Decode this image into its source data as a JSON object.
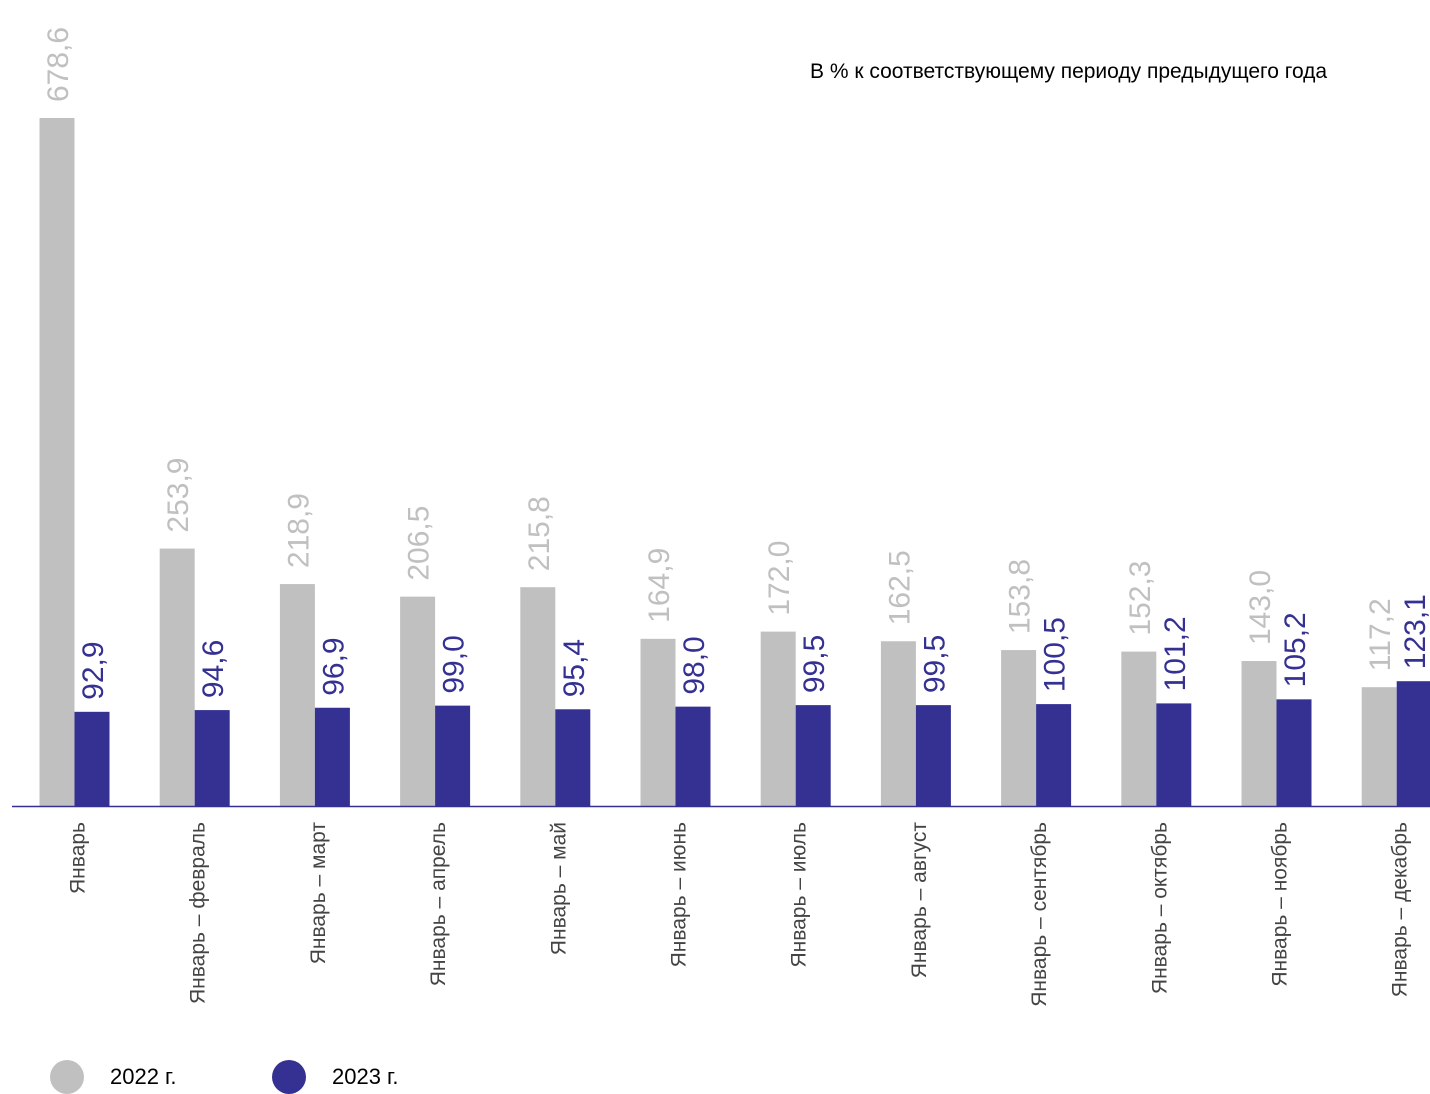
{
  "subtitle": "В % к соответствующему периоду предыдущего года",
  "colors": {
    "s2022": "#c0c0c0",
    "s2023": "#353192",
    "axis": "#353192"
  },
  "legend": [
    {
      "label": "2022 г.",
      "color": "#c0c0c0"
    },
    {
      "label": "2023 г.",
      "color": "#353192"
    }
  ],
  "chart_data": {
    "type": "bar",
    "title": "",
    "subtitle": "В % к соответствующему периоду предыдущего года",
    "categories": [
      "Январь",
      "Январь – февраль",
      "Январь – март",
      "Январь – апрель",
      "Январь – май",
      "Январь – июнь",
      "Январь – июль",
      "Январь – август",
      "Январь – сентябрь",
      "Январь – октябрь",
      "Январь – ноябрь",
      "Январь – декабрь"
    ],
    "series": [
      {
        "name": "2022 г.",
        "values": [
          678.6,
          253.9,
          218.9,
          206.5,
          215.8,
          164.9,
          172.0,
          162.5,
          153.8,
          152.3,
          143.0,
          117.2
        ],
        "labels": [
          "678,6",
          "253,9",
          "218,9",
          "206,5",
          "215,8",
          "164,9",
          "172,0",
          "162,5",
          "153,8",
          "152,3",
          "143,0",
          "117,2"
        ]
      },
      {
        "name": "2023 г.",
        "values": [
          92.9,
          94.6,
          96.9,
          99.0,
          95.4,
          98.0,
          99.5,
          99.5,
          100.5,
          101.2,
          105.2,
          123.1
        ],
        "labels": [
          "92,9",
          "94,6",
          "96,9",
          "99,0",
          "95,4",
          "98,0",
          "99,5",
          "99,5",
          "100,5",
          "101,2",
          "105,2",
          "123,1"
        ]
      }
    ],
    "ylim": [
      0,
      678.6
    ],
    "grid": false,
    "legend_position": "bottom-left"
  }
}
